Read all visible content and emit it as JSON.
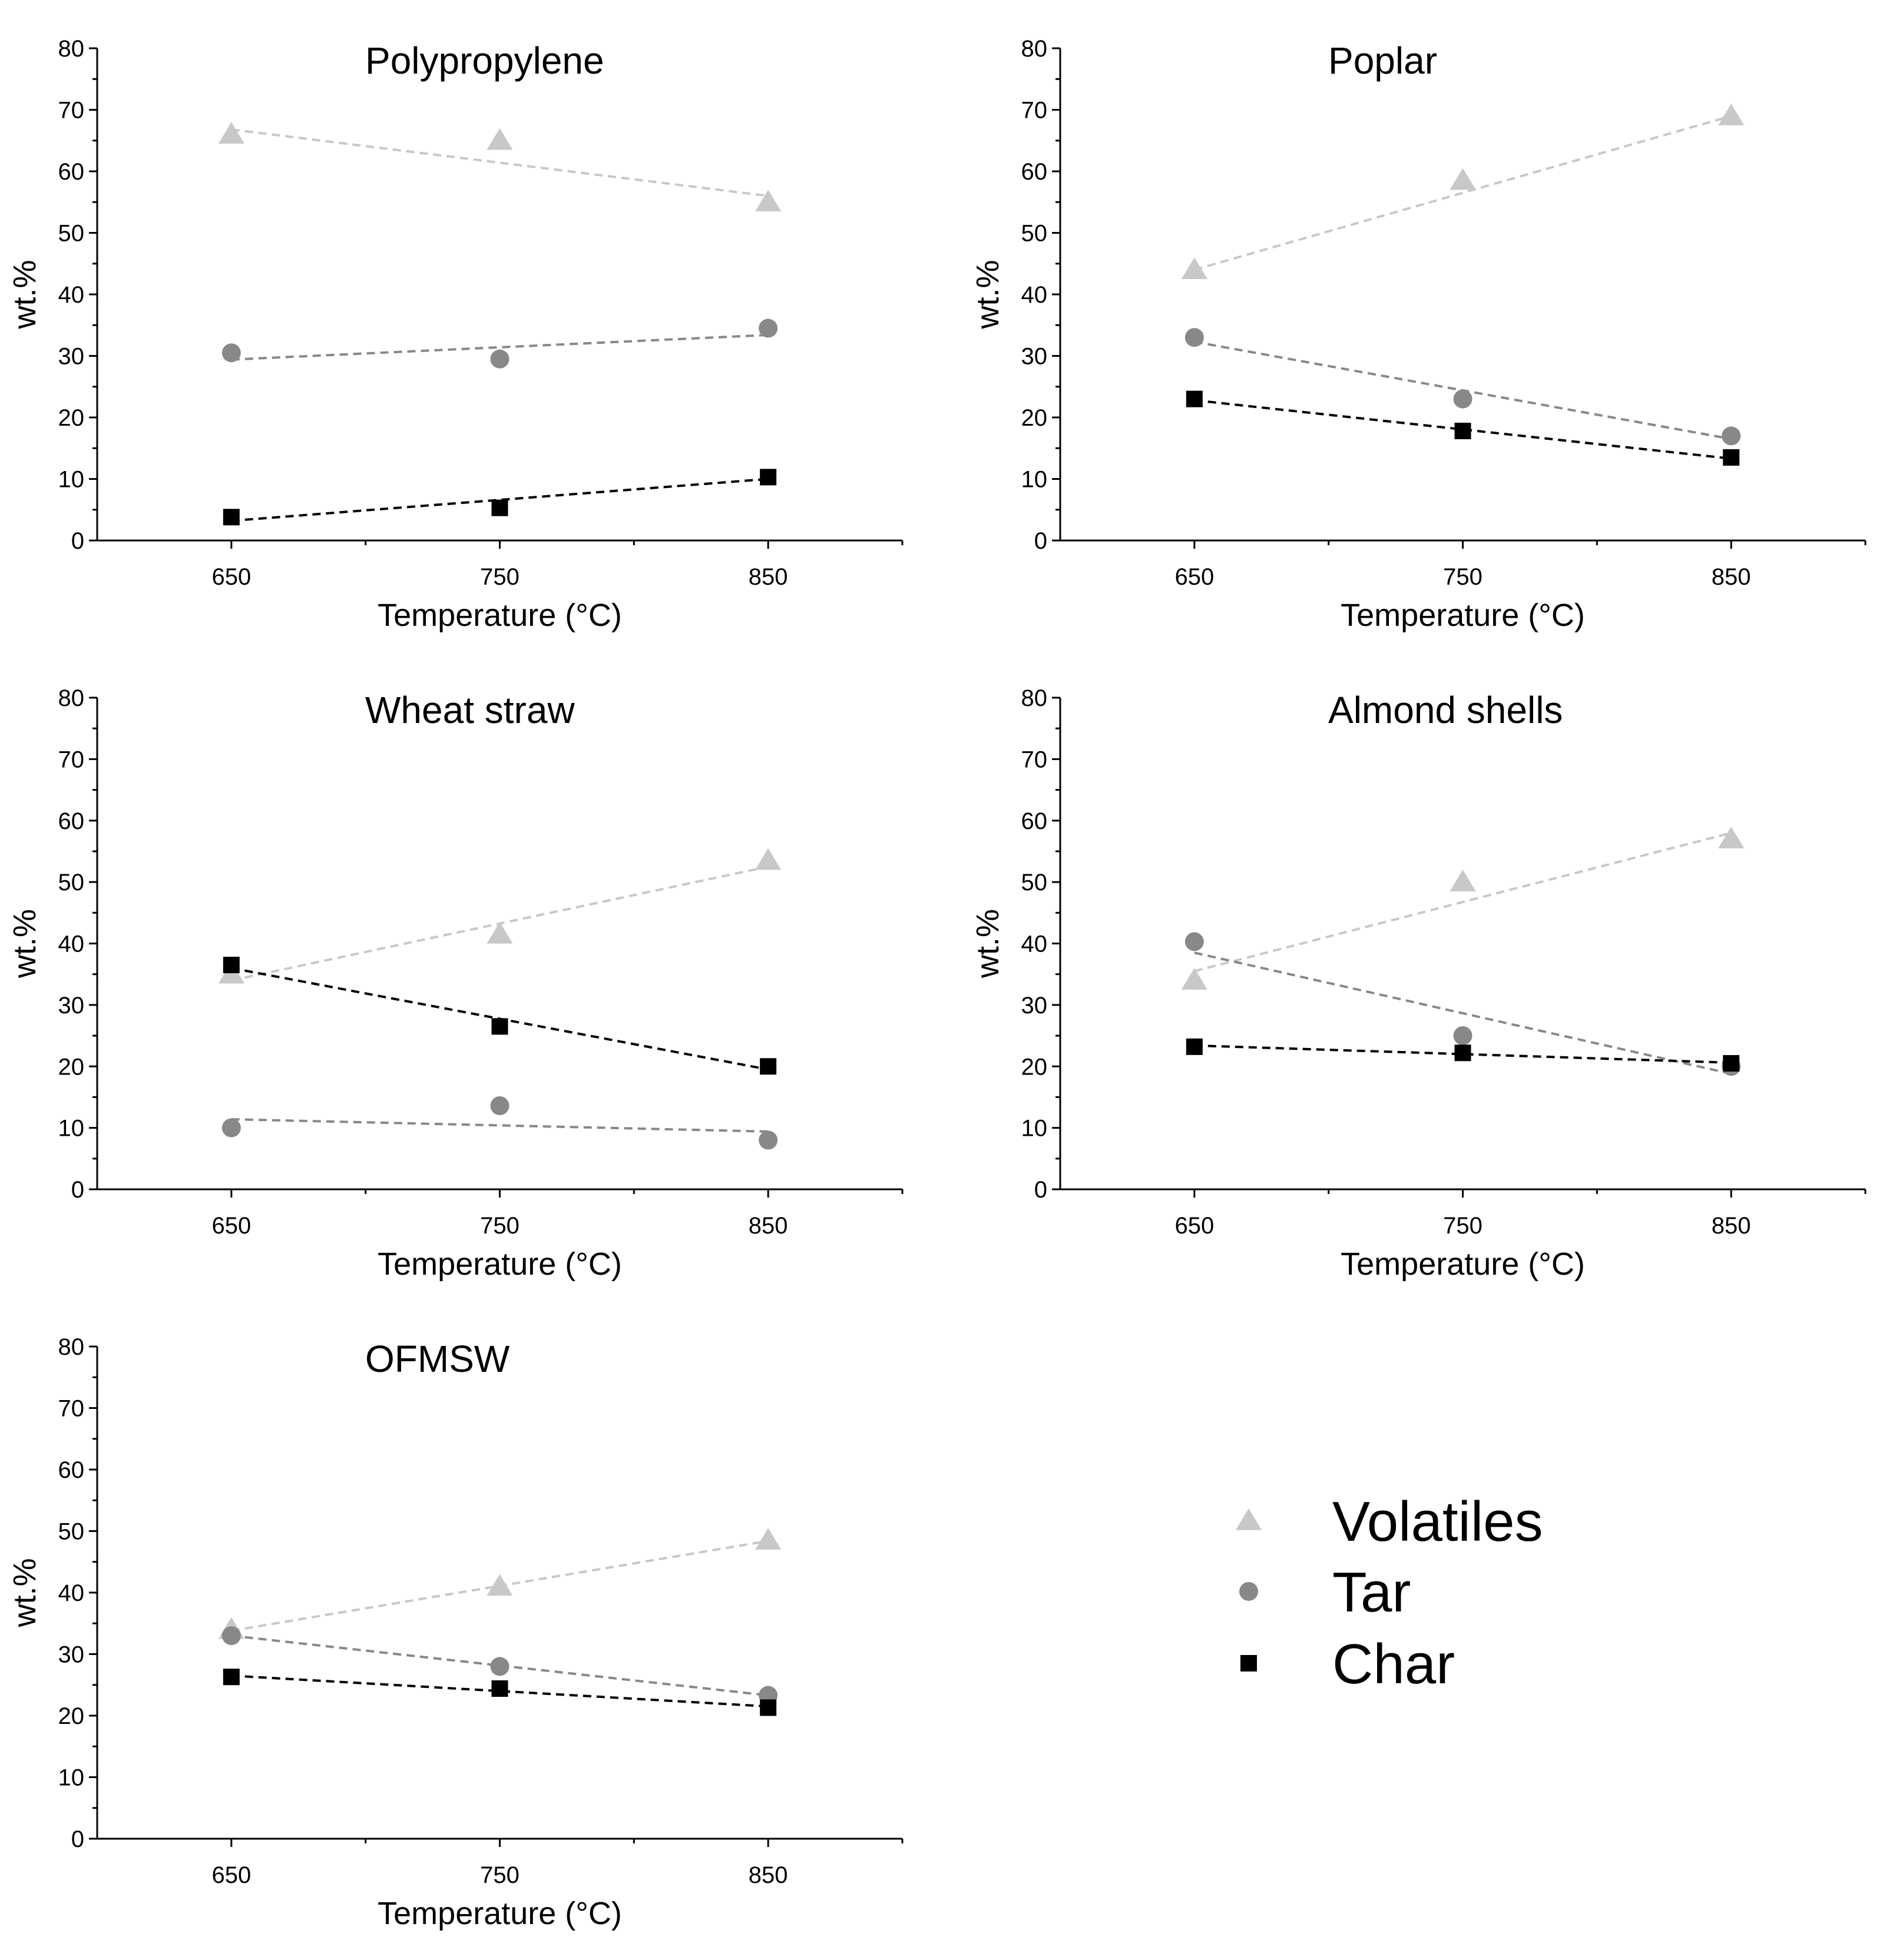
{
  "colors": {
    "volatiles": "#c8c8c8",
    "tar": "#888888",
    "char": "#000000"
  },
  "chart_data": [
    {
      "type": "scatter",
      "title": "Polypropylene",
      "xlabel": "Temperature (°C)",
      "ylabel": "wt.%",
      "x": [
        650,
        750,
        850
      ],
      "xlim": [
        600,
        900
      ],
      "ylim": [
        0,
        80
      ],
      "yticks": [
        "0",
        "10",
        "20",
        "30",
        "40",
        "50",
        "60",
        "70",
        "80"
      ],
      "xtick_labels": [
        "650",
        "750",
        "850"
      ],
      "series": [
        {
          "name": "Volatiles",
          "values": [
            66,
            65,
            55
          ],
          "fit": [
            66.8,
            56.0
          ]
        },
        {
          "name": "Tar",
          "values": [
            30.5,
            29.5,
            34.5
          ],
          "fit": [
            29.4,
            33.4
          ]
        },
        {
          "name": "Char",
          "values": [
            3.8,
            5.3,
            10.3
          ],
          "fit": [
            3.2,
            10.0
          ]
        }
      ]
    },
    {
      "type": "scatter",
      "title": "Poplar",
      "xlabel": "Temperature (°C)",
      "ylabel": "wt.%",
      "x": [
        650,
        750,
        850
      ],
      "xlim": [
        600,
        900
      ],
      "ylim": [
        0,
        80
      ],
      "yticks": [
        "0",
        "10",
        "20",
        "30",
        "40",
        "50",
        "60",
        "70",
        "80"
      ],
      "xtick_labels": [
        "650",
        "750",
        "850"
      ],
      "series": [
        {
          "name": "Volatiles",
          "values": [
            44,
            58.5,
            69
          ],
          "fit": [
            44.0,
            69.0
          ]
        },
        {
          "name": "Tar",
          "values": [
            33,
            23,
            17
          ],
          "fit": [
            32.3,
            16.5
          ]
        },
        {
          "name": "Char",
          "values": [
            23,
            17.8,
            13.5
          ],
          "fit": [
            22.8,
            13.3
          ]
        }
      ]
    },
    {
      "type": "scatter",
      "title": "Wheat straw",
      "xlabel": "Temperature (°C)",
      "ylabel": "wt.%",
      "x": [
        650,
        750,
        850
      ],
      "xlim": [
        600,
        900
      ],
      "ylim": [
        0,
        80
      ],
      "yticks": [
        "0",
        "10",
        "20",
        "30",
        "40",
        "50",
        "60",
        "70",
        "80"
      ],
      "xtick_labels": [
        "650",
        "750",
        "850"
      ],
      "series": [
        {
          "name": "Volatiles",
          "values": [
            35,
            41.5,
            53.5
          ],
          "fit": [
            34.0,
            52.5
          ]
        },
        {
          "name": "Tar",
          "values": [
            10,
            13.6,
            8
          ],
          "fit": [
            11.4,
            9.4
          ]
        },
        {
          "name": "Char",
          "values": [
            36.5,
            26.5,
            20
          ],
          "fit": [
            36.0,
            19.5
          ]
        }
      ]
    },
    {
      "type": "scatter",
      "title": "Almond shells",
      "xlabel": "Temperature (°C)",
      "ylabel": "wt.%",
      "x": [
        650,
        750,
        850
      ],
      "xlim": [
        600,
        900
      ],
      "ylim": [
        0,
        80
      ],
      "yticks": [
        "0",
        "10",
        "20",
        "30",
        "40",
        "50",
        "60",
        "70",
        "80"
      ],
      "xtick_labels": [
        "650",
        "750",
        "850"
      ],
      "series": [
        {
          "name": "Volatiles",
          "values": [
            34,
            50,
            57
          ],
          "fit": [
            35.5,
            58.0
          ]
        },
        {
          "name": "Tar",
          "values": [
            40.3,
            25,
            20
          ],
          "fit": [
            38.5,
            18.8
          ]
        },
        {
          "name": "Char",
          "values": [
            23.2,
            22.2,
            20.5
          ],
          "fit": [
            23.4,
            20.6
          ]
        }
      ]
    },
    {
      "type": "scatter",
      "title": "OFMSW",
      "xlabel": "Temperature (°C)",
      "ylabel": "wt.%",
      "x": [
        650,
        750,
        850
      ],
      "xlim": [
        600,
        900
      ],
      "ylim": [
        0,
        80
      ],
      "yticks": [
        "0",
        "10",
        "20",
        "30",
        "40",
        "50",
        "60",
        "70",
        "80"
      ],
      "xtick_labels": [
        "650",
        "750",
        "850"
      ],
      "series": [
        {
          "name": "Volatiles",
          "values": [
            34,
            41,
            48.5
          ],
          "fit": [
            33.8,
            48.4
          ]
        },
        {
          "name": "Tar",
          "values": [
            33,
            28,
            23.3
          ],
          "fit": [
            33.0,
            23.3
          ]
        },
        {
          "name": "Char",
          "values": [
            26.3,
            24.4,
            21.3
          ],
          "fit": [
            26.5,
            21.5
          ]
        }
      ]
    }
  ],
  "legend": [
    {
      "key": "volatiles",
      "label": "Volatiles",
      "marker": "triangle"
    },
    {
      "key": "tar",
      "label": "Tar",
      "marker": "circle"
    },
    {
      "key": "char",
      "label": "Char",
      "marker": "square"
    }
  ]
}
